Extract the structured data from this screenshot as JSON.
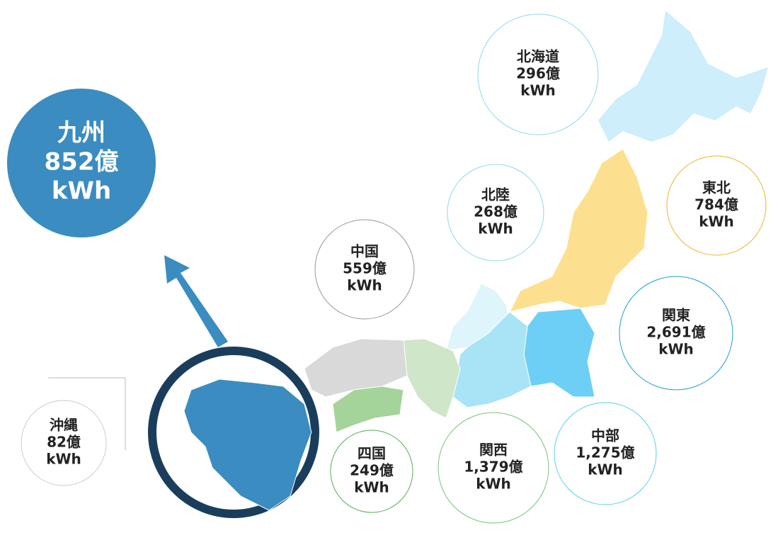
{
  "regions": [
    {
      "name": "九州",
      "amount": "852億",
      "unit": "kWh"
    },
    {
      "name": "北海道",
      "amount": "296億",
      "unit": "kWh"
    },
    {
      "name": "東北",
      "amount": "784億",
      "unit": "kWh"
    },
    {
      "name": "北陸",
      "amount": "268億",
      "unit": "kWh"
    },
    {
      "name": "中国",
      "amount": "559億",
      "unit": "kWh"
    },
    {
      "name": "関東",
      "amount": "2,691億",
      "unit": "kWh"
    },
    {
      "name": "沖縄",
      "amount": "82億",
      "unit": "kWh"
    },
    {
      "name": "四国",
      "amount": "249億",
      "unit": "kWh"
    },
    {
      "name": "関西",
      "amount": "1,379億",
      "unit": "kWh"
    },
    {
      "name": "中部",
      "amount": "1,275億",
      "unit": "kWh"
    }
  ]
}
